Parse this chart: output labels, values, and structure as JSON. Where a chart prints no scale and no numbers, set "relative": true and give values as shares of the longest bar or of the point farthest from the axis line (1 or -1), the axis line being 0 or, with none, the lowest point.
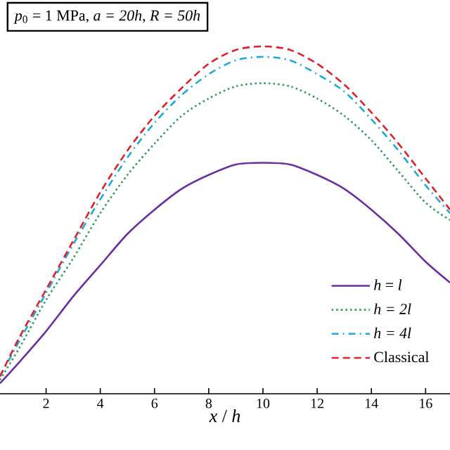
{
  "chart_data": {
    "type": "line",
    "relative": true,
    "xlabel": "*x* / *h*",
    "annotations": [
      "*p*$_{0}$ = 1 MPa, *a = 20h*, *R = 50h*"
    ],
    "x": [
      0.3,
      1,
      2,
      3,
      4,
      5,
      6,
      7,
      8,
      9,
      10,
      11,
      12,
      13,
      14,
      15,
      16,
      16.9
    ],
    "xlim": [
      0.3,
      16.9
    ],
    "xticks": [
      2,
      4,
      6,
      8,
      10,
      12,
      14,
      16
    ],
    "tick_labels": "x",
    "grid": false,
    "legend": "bottom right",
    "marker": "none",
    "series": [
      {
        "name": "*h* = *l*",
        "color": "#6a2fa0",
        "line_style": "solid",
        "values": [
          0.03,
          0.09,
          0.18,
          0.28,
          0.37,
          0.46,
          0.53,
          0.59,
          0.63,
          0.66,
          0.665,
          0.66,
          0.63,
          0.59,
          0.53,
          0.46,
          0.38,
          0.32
        ]
      },
      {
        "name": "*h = 2l*",
        "color": "#2e9e5b",
        "line_style": "dotted",
        "values": [
          0.04,
          0.13,
          0.27,
          0.39,
          0.52,
          0.63,
          0.72,
          0.8,
          0.85,
          0.885,
          0.894,
          0.885,
          0.85,
          0.8,
          0.73,
          0.64,
          0.55,
          0.5
        ]
      },
      {
        "name": "*h = 4l*",
        "color": "#1fa8d8",
        "line_style": "dashdot",
        "values": [
          0.05,
          0.15,
          0.29,
          0.43,
          0.56,
          0.68,
          0.78,
          0.86,
          0.92,
          0.96,
          0.97,
          0.96,
          0.92,
          0.87,
          0.79,
          0.7,
          0.6,
          0.52
        ]
      },
      {
        "name": "Classical",
        "color": "#e0202a",
        "line_style": "dashed",
        "values": [
          0.05,
          0.16,
          0.3,
          0.44,
          0.58,
          0.7,
          0.8,
          0.88,
          0.95,
          0.99,
          1.0,
          0.99,
          0.95,
          0.89,
          0.81,
          0.72,
          0.62,
          0.53
        ]
      }
    ]
  }
}
